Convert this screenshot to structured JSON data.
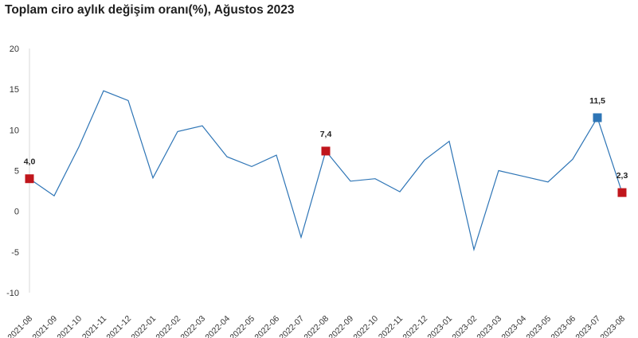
{
  "chart_data": {
    "type": "line",
    "title": "Toplam ciro aylık değişim oranı(%), Ağustos 2023",
    "categories": [
      "2021-08",
      "2021-09",
      "2021-10",
      "2021-11",
      "2021-12",
      "2022-01",
      "2022-02",
      "2022-03",
      "2022-04",
      "2022-05",
      "2022-06",
      "2022-07",
      "2022-08",
      "2022-09",
      "2022-10",
      "2022-11",
      "2022-12",
      "2023-01",
      "2023-02",
      "2023-03",
      "2023-04",
      "2023-05",
      "2023-06",
      "2023-07",
      "2023-08"
    ],
    "series": [
      {
        "values": [
          4.0,
          1.9,
          7.9,
          14.8,
          13.6,
          4.1,
          9.8,
          10.5,
          6.7,
          5.5,
          6.9,
          -3.2,
          7.4,
          3.7,
          4.0,
          2.4,
          6.3,
          8.6,
          -4.7,
          5.0,
          4.3,
          3.6,
          6.4,
          11.5,
          2.3
        ],
        "color": "#2e75b6"
      }
    ],
    "ylim": [
      -10,
      20
    ],
    "yticks": [
      -10,
      -5,
      0,
      5,
      10,
      15,
      20
    ],
    "ytick_labels": [
      "-10",
      "-5",
      "0",
      "5",
      "10",
      "15",
      "20"
    ],
    "grid": false,
    "highlighted_points": [
      {
        "index": 0,
        "label": "4,0",
        "color": "#c0161c"
      },
      {
        "index": 12,
        "label": "7,4",
        "color": "#c0161c"
      },
      {
        "index": 23,
        "label": "11,5",
        "color": "#2e75b6"
      },
      {
        "index": 24,
        "label": "2,3",
        "color": "#c0161c"
      }
    ]
  }
}
